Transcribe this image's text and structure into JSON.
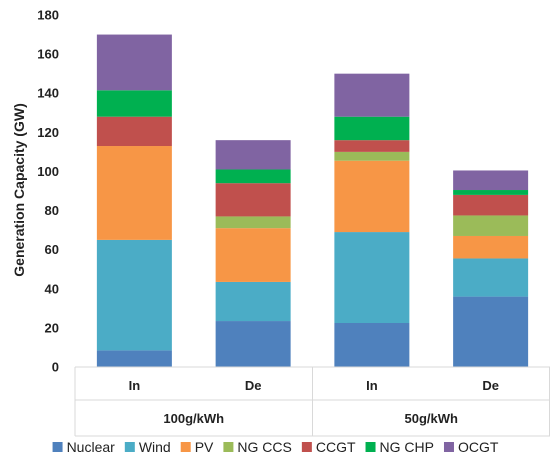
{
  "chart_data": {
    "type": "bar",
    "stacked": true,
    "title": "",
    "xlabel": "",
    "ylabel": "Generation Capacity (GW)",
    "ylim": [
      0,
      180
    ],
    "yticks": [
      0,
      20,
      40,
      60,
      80,
      100,
      120,
      140,
      160,
      180
    ],
    "grid": false,
    "legend_position": "bottom",
    "groups": [
      {
        "label": "100g/kWh",
        "categories": [
          "In",
          "De"
        ]
      },
      {
        "label": "50g/kWh",
        "categories": [
          "In",
          "De"
        ]
      }
    ],
    "categories": [
      "In",
      "De",
      "In",
      "De"
    ],
    "series": [
      {
        "name": "Nuclear",
        "color": "#4f81bd",
        "values": [
          8.5,
          23.5,
          22.5,
          36
        ]
      },
      {
        "name": "Wind",
        "color": "#4bacc6",
        "values": [
          56.5,
          20,
          46.5,
          19.5
        ]
      },
      {
        "name": "PV",
        "color": "#f79646",
        "values": [
          48,
          27.5,
          36.5,
          11.5
        ]
      },
      {
        "name": "NG CCS",
        "color": "#9bbb59",
        "values": [
          0,
          6,
          4.5,
          10.5
        ]
      },
      {
        "name": "CCGT",
        "color": "#c0504d",
        "values": [
          15,
          17,
          6,
          10.5
        ]
      },
      {
        "name": "NG CHP",
        "color": "#00b050",
        "values": [
          13.5,
          7,
          12,
          2.5
        ]
      },
      {
        "name": "OCGT",
        "color": "#8064a2",
        "values": [
          28.5,
          15,
          22,
          10
        ]
      }
    ]
  }
}
